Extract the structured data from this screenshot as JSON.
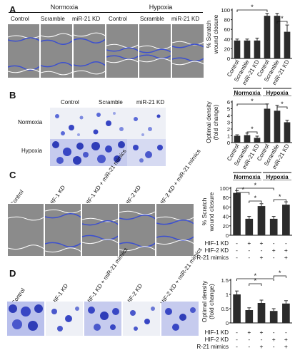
{
  "panels": {
    "A": "A",
    "B": "B",
    "C": "C",
    "D": "D"
  },
  "panelA": {
    "normoxia": "Normoxia",
    "hypoxia": "Hypoxia",
    "columns": [
      "Control",
      "Scramble",
      "miR-21 KD",
      "Control",
      "Scramble",
      "miR-21 KD"
    ]
  },
  "panelB": {
    "columns": [
      "Control",
      "Scramble",
      "miR-21 KD"
    ],
    "rows": [
      "Normoxia",
      "Hypoxia"
    ]
  },
  "panelC": {
    "columns": [
      "Control",
      "HIF-1 KD",
      "HIF-1 KD + miR-21 mimics",
      "HIF-2 KD",
      "HIF-2 KD + miR-21 mimics"
    ]
  },
  "panelD": {
    "columns": [
      "Control",
      "HIF-1 KD",
      "HIF-1 KD + miR-21 mimics",
      "HIF-2 KD",
      "HIF-2 KD + miR-21 mimics"
    ]
  },
  "signs": {
    "minus": "-",
    "plus": "+",
    "star": "*"
  },
  "chart_data": [
    {
      "type": "bar",
      "panel": "A",
      "categories": [
        "Control",
        "Scramble",
        "miR-21 KD",
        "Control",
        "Scramble",
        "miR-21 KD"
      ],
      "values": [
        37,
        37,
        37,
        88,
        88,
        55
      ],
      "errors": [
        3,
        3,
        5,
        5,
        5,
        14
      ],
      "ylabel": "% Scratch wound closure",
      "yticks": [
        "0",
        "20",
        "40",
        "60",
        "80",
        "100"
      ],
      "ylim": [
        0,
        100
      ],
      "groups": [
        "Normoxia",
        "Hypoxia"
      ]
    },
    {
      "type": "bar",
      "panel": "B",
      "categories": [
        "Control",
        "Scramble",
        "miR-21 KD",
        "Control",
        "Scramble",
        "miR-21 KD"
      ],
      "values": [
        1,
        1.1,
        0.7,
        5,
        4.7,
        3
      ],
      "errors": [
        0.15,
        0.3,
        0.25,
        0.7,
        0.8,
        0.3
      ],
      "ylabel": "Optimal density (fold change)",
      "yticks": [
        "0",
        "1",
        "2",
        "3",
        "4",
        "5",
        "6"
      ],
      "ylim": [
        0,
        6
      ],
      "groups": [
        "Normoxia",
        "Hypoxia"
      ]
    },
    {
      "type": "bar",
      "panel": "C",
      "categories": [
        "1",
        "2",
        "3",
        "4",
        "5"
      ],
      "values": [
        90,
        35,
        62,
        35,
        65
      ],
      "errors": [
        5,
        5,
        5,
        5,
        6
      ],
      "ylabel": "% Scratch wound closure",
      "yticks": [
        "0",
        "20",
        "40",
        "60",
        "80",
        "100"
      ],
      "ylim": [
        0,
        100
      ],
      "conditions": [
        {
          "name": "HIF-1 KD",
          "signs": [
            "-",
            "+",
            "+",
            "-",
            "-"
          ]
        },
        {
          "name": "HIF-2 KD",
          "signs": [
            "-",
            "-",
            "-",
            "+",
            "+"
          ]
        },
        {
          "name": "miR-21 mimics",
          "signs": [
            "-",
            "-",
            "+",
            "-",
            "+"
          ]
        }
      ]
    },
    {
      "type": "bar",
      "panel": "D",
      "categories": [
        "1",
        "2",
        "3",
        "4",
        "5"
      ],
      "values": [
        1.0,
        0.45,
        0.7,
        0.42,
        0.68
      ],
      "errors": [
        0.12,
        0.08,
        0.1,
        0.08,
        0.1
      ],
      "ylabel": "Optimal density (fold change)",
      "yticks": [
        "0",
        "0.5",
        "1",
        "1.5"
      ],
      "ylim": [
        0,
        1.5
      ],
      "conditions": [
        {
          "name": "HIF-1 KD",
          "signs": [
            "-",
            "+",
            "+",
            "-",
            "-"
          ]
        },
        {
          "name": "HIF-2 KD",
          "signs": [
            "-",
            "-",
            "-",
            "+",
            "+"
          ]
        },
        {
          "name": "miR-21 mimics",
          "signs": [
            "-",
            "-",
            "+",
            "-",
            "+"
          ]
        }
      ]
    }
  ]
}
